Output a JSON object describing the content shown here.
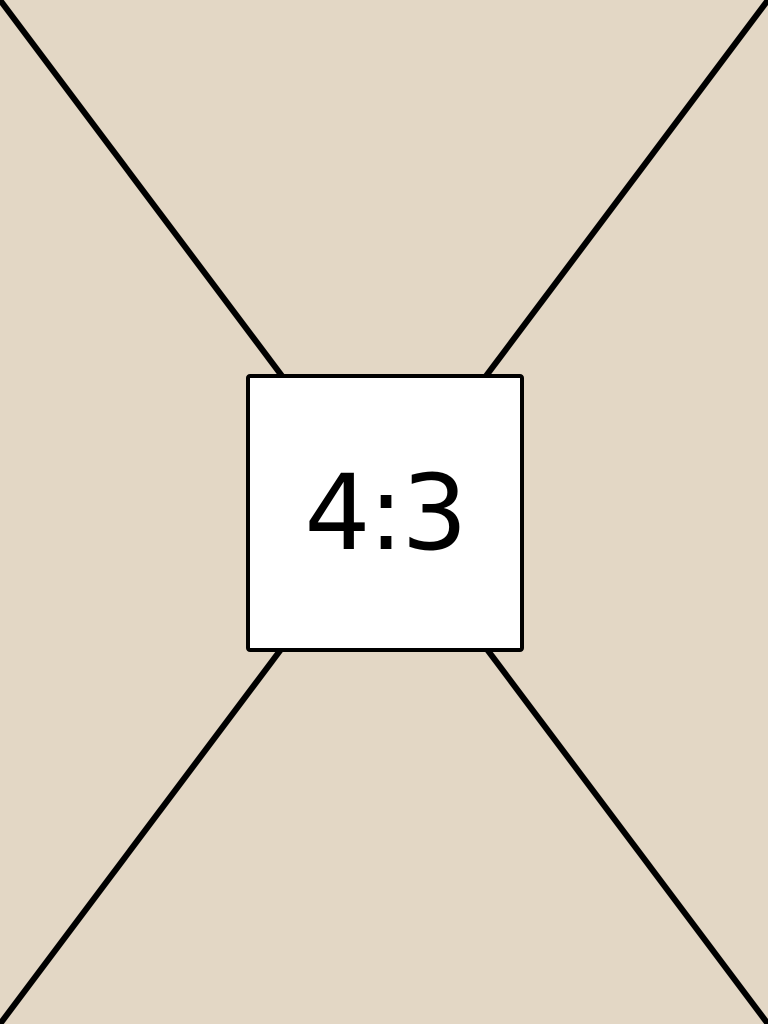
{
  "placeholder": {
    "ratio_label": "4:3",
    "background_color": "#e3d7c5",
    "line_color": "#000000",
    "box_color": "#ffffff"
  }
}
